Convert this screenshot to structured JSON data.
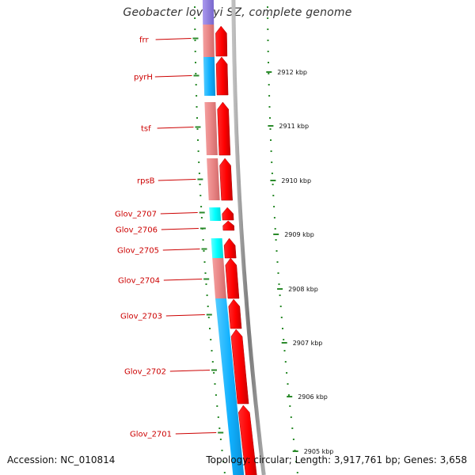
{
  "title": "Geobacter lovleyi SZ, complete genome",
  "footer": {
    "accession": "Accession: NC_010814",
    "summary": "Topology: circular; Length: 3,917,761 bp; Genes: 3,658"
  },
  "colors": {
    "forward_cds": "#ff0000",
    "reverse_cog_pink": "#e98585",
    "reverse_cog_cyan": "#00ffff",
    "reverse_cog_blue": "#11b1ff",
    "reverse_cog_purple": "#8877dd",
    "backbone": "#8a8a8a",
    "label": "#cc0000",
    "tick": "#2a8a2a"
  },
  "genes": [
    {
      "label": "frr"
    },
    {
      "label": "pyrH"
    },
    {
      "label": "tsf"
    },
    {
      "label": "rpsB"
    },
    {
      "label": "Glov_2707"
    },
    {
      "label": "Glov_2706"
    },
    {
      "label": "Glov_2705"
    },
    {
      "label": "Glov_2704"
    },
    {
      "label": "Glov_2703"
    },
    {
      "label": "Glov_2702"
    },
    {
      "label": "Glov_2701"
    }
  ],
  "kbp_ticks": [
    "2912 kbp",
    "2911 kbp",
    "2910 kbp",
    "2909 kbp",
    "2908 kbp",
    "2907 kbp",
    "2906 kbp",
    "2905 kbp"
  ]
}
